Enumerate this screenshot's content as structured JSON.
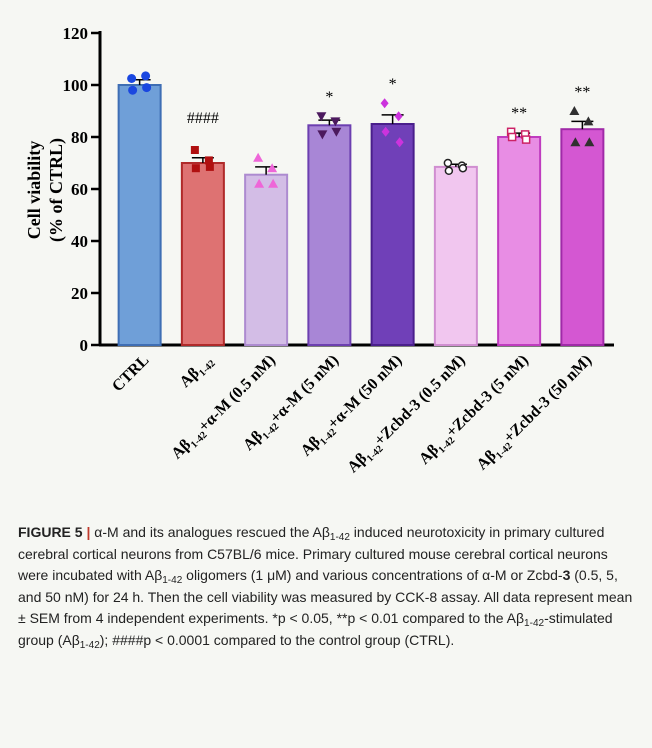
{
  "chart_data": {
    "type": "bar",
    "ylabel_line1": "Cell viability",
    "ylabel_line2": "(% of CTRL)",
    "ylim": [
      0,
      120
    ],
    "yticks": [
      0,
      20,
      40,
      60,
      80,
      100,
      120
    ],
    "grid": false,
    "categories": [
      {
        "main": "CTRL",
        "sub": ""
      },
      {
        "main": "Aβ",
        "sub": "1-42",
        "suffix": ""
      },
      {
        "main": "Aβ",
        "sub": "1-42",
        "suffix": "+α-M (0.5 nM)"
      },
      {
        "main": "Aβ",
        "sub": "1-42",
        "suffix": "+α-M (5 nM)"
      },
      {
        "main": "Aβ",
        "sub": "1-42",
        "suffix": "+α-M (50 nM)"
      },
      {
        "main": "Aβ",
        "sub": "1-42",
        "suffix": "+Zcbd-3 (0.5 nM)"
      },
      {
        "main": "Aβ",
        "sub": "1-42",
        "suffix": "+Zcbd-3 (5 nM)"
      },
      {
        "main": "Aβ",
        "sub": "1-42",
        "suffix": "+Zcbd-3 (50 nM)"
      }
    ],
    "values": [
      100,
      70,
      65.5,
      84.5,
      85,
      68.5,
      80,
      83
    ],
    "sem": [
      2,
      2,
      3,
      2,
      3.5,
      1,
      1.5,
      3
    ],
    "points": [
      [
        102.5,
        103.5,
        98,
        99
      ],
      [
        75,
        71,
        68,
        68.5
      ],
      [
        72,
        68,
        62,
        62
      ],
      [
        88,
        86,
        81,
        82
      ],
      [
        93,
        88,
        82,
        78
      ],
      [
        70,
        69,
        67,
        68
      ],
      [
        82,
        81,
        80,
        79
      ],
      [
        90,
        86,
        78,
        78
      ]
    ],
    "markers": [
      "circle",
      "square",
      "triangle-up",
      "triangle-down",
      "diamond",
      "circle-open",
      "square-open",
      "triangle-up"
    ],
    "significance": [
      "",
      "####",
      "",
      "*",
      "*",
      "",
      "**",
      "**"
    ],
    "colors": {
      "fill": [
        "#6f9fd8",
        "#de7272",
        "#d3bde6",
        "#a886d6",
        "#7040b8",
        "#f1c6ef",
        "#e88de4",
        "#d457d2"
      ],
      "stroke": [
        "#3e6eb4",
        "#b02a2a",
        "#ad8bd0",
        "#6c3fb0",
        "#4a1f8c",
        "#d08ed0",
        "#bf3cbf",
        "#a02aa8"
      ],
      "points": [
        "#1a47e0",
        "#b01010",
        "#ee66d8",
        "#4c1a5e",
        "#cc33dd",
        "#222222",
        "#cc2266",
        "#303030"
      ]
    }
  },
  "caption": {
    "label": "FIGURE 5",
    "separator": "|",
    "text_1": "α-M and its analogues rescued the Aβ",
    "sub_1": "1-42",
    "text_2": " induced neurotoxicity in primary cultured cerebral cortical neurons from C57BL/6 mice. Primary cultured mouse cerebral cortical neurons were incubated with Aβ",
    "sub_2": "1-42",
    "text_3": " oligomers (1 μM) and various concentrations of α-M or Zcbd-",
    "bold_3": "3",
    "text_4": " (0.5, 5, and 50 nM) for 24 h. Then the cell viability was measured by CCK-8 assay. All data represent mean ± SEM from 4 independent experiments. *p < 0.05, **p < 0.01 compared to the Aβ",
    "sub_3": "1-42",
    "text_5": "-stimulated group (Aβ",
    "sub_4": "1-42",
    "text_6": "); ####p < 0.0001 compared to the control group (CTRL)."
  }
}
